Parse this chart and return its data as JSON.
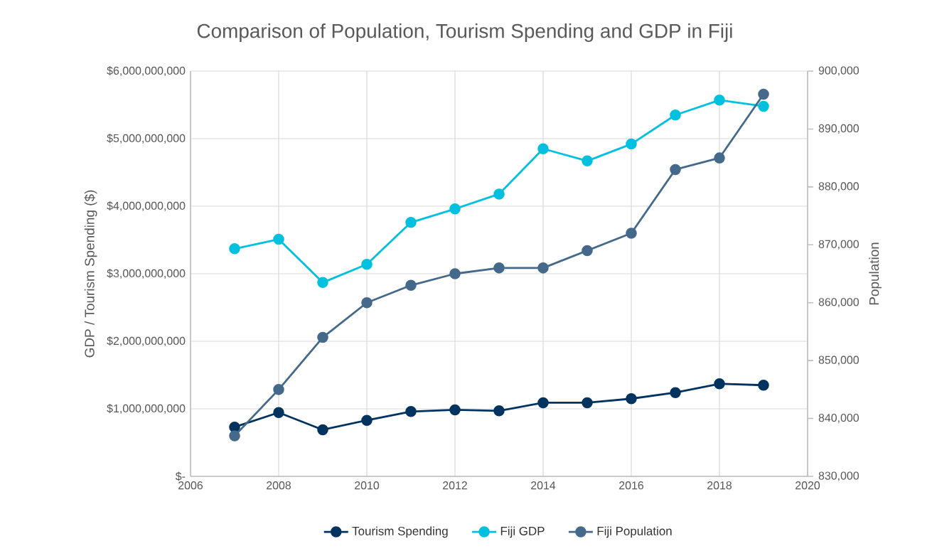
{
  "chart_data": {
    "type": "line",
    "title": "Comparison of Population, Tourism Spending and GDP in Fiji",
    "ylabel": "GDP / Tourism Spending ($)",
    "y2label": "Population",
    "x": [
      2007,
      2008,
      2009,
      2010,
      2011,
      2012,
      2013,
      2014,
      2015,
      2016,
      2017,
      2018,
      2019
    ],
    "series": [
      {
        "name": "Tourism Spending",
        "color": "#00335f",
        "values": [
          730000000,
          945000000,
          690000000,
          830000000,
          960000000,
          985000000,
          970000000,
          1090000000,
          1090000000,
          1150000000,
          1240000000,
          1370000000,
          1350000000
        ]
      },
      {
        "name": "Fiji GDP",
        "color": "#00c0e0",
        "values": [
          3370000000,
          3510000000,
          2870000000,
          3140000000,
          3760000000,
          3960000000,
          4180000000,
          4850000000,
          4670000000,
          4920000000,
          5350000000,
          5570000000,
          5480000000
        ]
      },
      {
        "name": "Fiji Population",
        "color": "#44698b",
        "axis": "y2",
        "values": [
          837000,
          845000,
          854000,
          860000,
          863000,
          865000,
          866000,
          866000,
          869000,
          872000,
          883000,
          885000,
          896000
        ]
      }
    ],
    "xlim": [
      2006,
      2020
    ],
    "xticks": [
      2006,
      2008,
      2010,
      2012,
      2014,
      2016,
      2018,
      2020
    ],
    "ylim": [
      0,
      6000000000
    ],
    "yticks": [
      {
        "value": 0,
        "label": "$-"
      },
      {
        "value": 1000000000,
        "label": "$1,000,000,000"
      },
      {
        "value": 2000000000,
        "label": "$2,000,000,000"
      },
      {
        "value": 3000000000,
        "label": "$3,000,000,000"
      },
      {
        "value": 4000000000,
        "label": "$4,000,000,000"
      },
      {
        "value": 5000000000,
        "label": "$5,000,000,000"
      },
      {
        "value": 6000000000,
        "label": "$6,000,000,000"
      }
    ],
    "y2lim": [
      830000,
      900000
    ],
    "y2ticks": [
      {
        "value": 830000,
        "label": "830,000"
      },
      {
        "value": 840000,
        "label": "840,000"
      },
      {
        "value": 850000,
        "label": "850,000"
      },
      {
        "value": 860000,
        "label": "860,000"
      },
      {
        "value": 870000,
        "label": "870,000"
      },
      {
        "value": 880000,
        "label": "880,000"
      },
      {
        "value": 890000,
        "label": "890,000"
      },
      {
        "value": 900000,
        "label": "900,000"
      }
    ],
    "grid": true,
    "legend": "bottom",
    "marker": "circle",
    "line_style": "solid"
  }
}
